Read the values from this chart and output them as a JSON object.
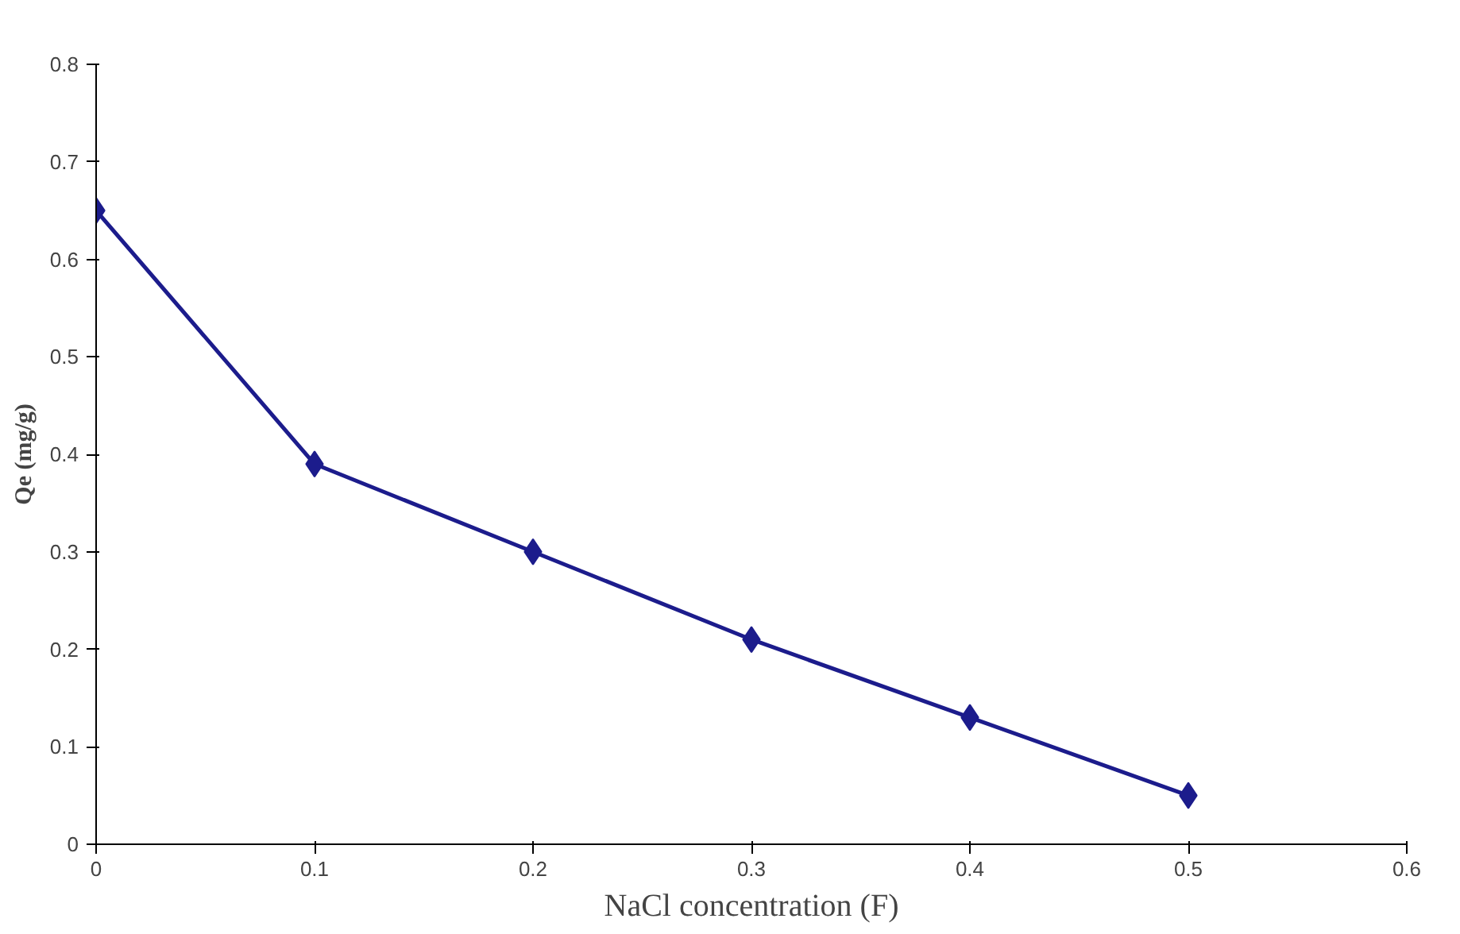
{
  "chart_data": {
    "type": "line",
    "xlabel": "NaCl concentration (F)",
    "ylabel": "Qe (mg/g)",
    "x": [
      0,
      0.1,
      0.2,
      0.3,
      0.4,
      0.5
    ],
    "series": [
      {
        "color": "#1c1c8c",
        "values": [
          0.65,
          0.39,
          0.3,
          0.21,
          0.13,
          0.05
        ]
      }
    ],
    "xlim": [
      0,
      0.6
    ],
    "ylim": [
      0,
      0.8
    ],
    "xticks": [
      0,
      0.1,
      0.2,
      0.3,
      0.4,
      0.5,
      0.6
    ],
    "yticks": [
      0,
      0.1,
      0.2,
      0.3,
      0.4,
      0.5,
      0.6,
      0.7,
      0.8
    ],
    "grid": false,
    "marker": "diamond",
    "line_style": "solid"
  }
}
